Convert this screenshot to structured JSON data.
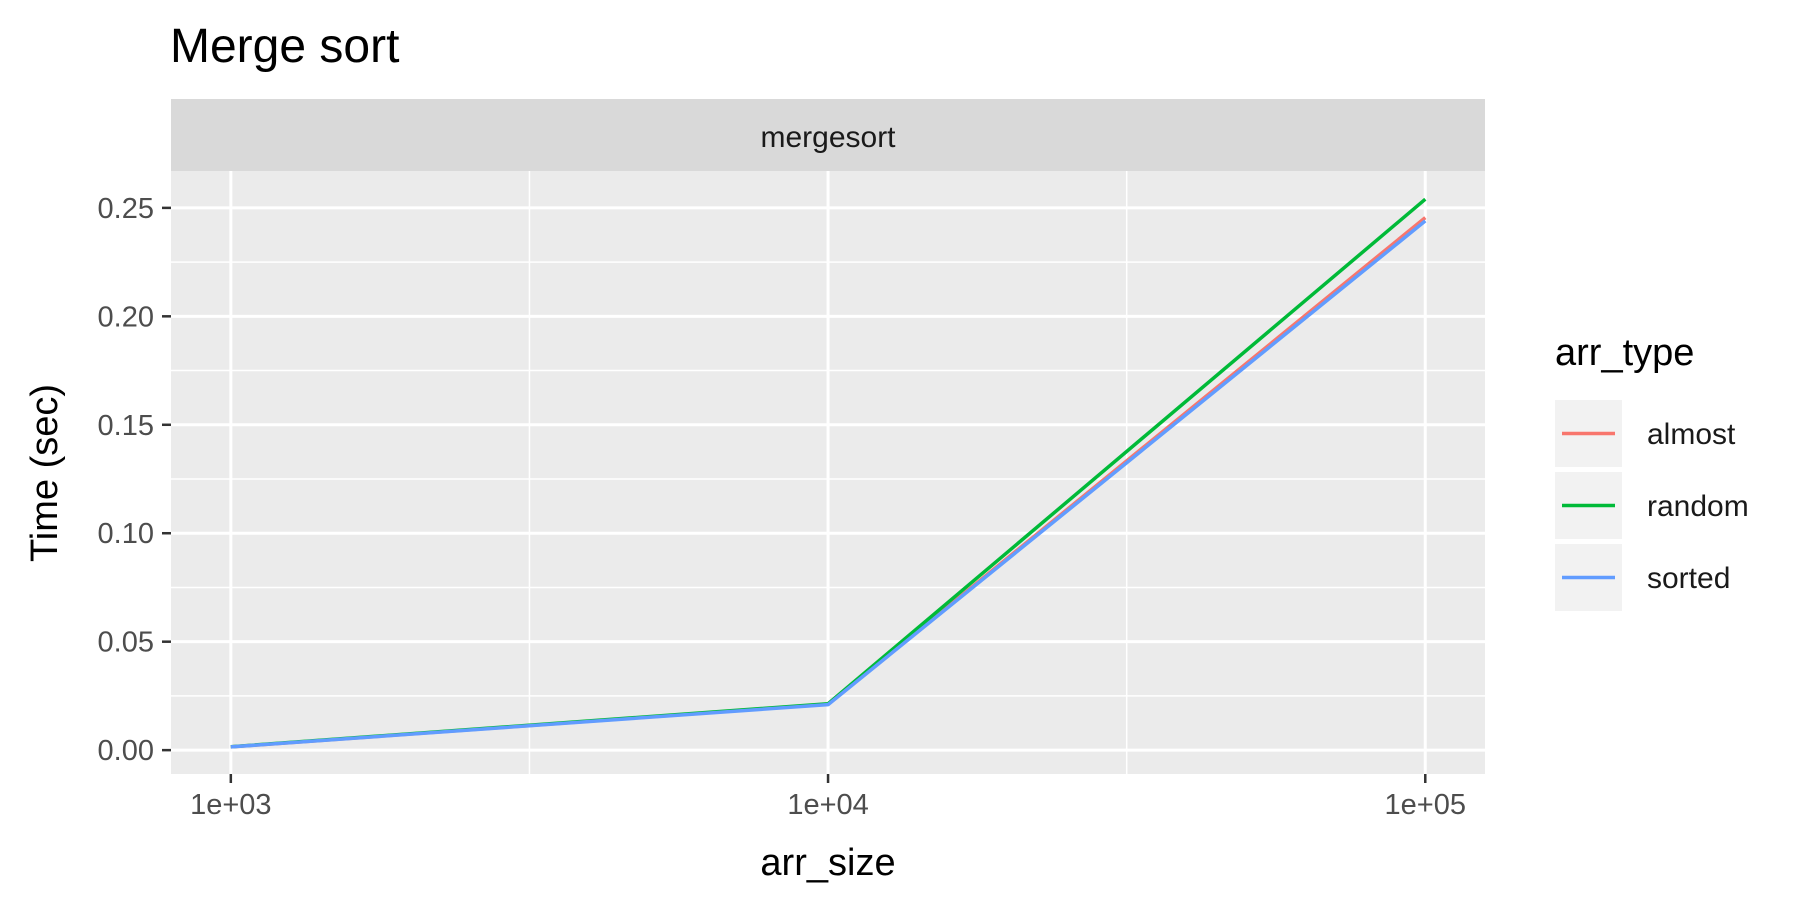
{
  "chart_data": {
    "type": "line",
    "title": "Merge sort",
    "facet": "mergesort",
    "xlabel": "arr_size",
    "ylabel": "Time (sec)",
    "x_scale": "log10",
    "x": [
      1000,
      10000,
      100000
    ],
    "x_ticks": [
      {
        "value": 1000,
        "label": "1e+03"
      },
      {
        "value": 10000,
        "label": "1e+04"
      },
      {
        "value": 100000,
        "label": "1e+05"
      }
    ],
    "x_minor_breaks": [
      3162.28,
      31622.78
    ],
    "xlim": [
      794,
      125893
    ],
    "y_ticks": [
      {
        "value": 0.0,
        "label": "0.00"
      },
      {
        "value": 0.05,
        "label": "0.05"
      },
      {
        "value": 0.1,
        "label": "0.10"
      },
      {
        "value": 0.15,
        "label": "0.15"
      },
      {
        "value": 0.2,
        "label": "0.20"
      },
      {
        "value": 0.25,
        "label": "0.25"
      }
    ],
    "y_minor_breaks": [
      0.025,
      0.075,
      0.125,
      0.175,
      0.225
    ],
    "ylim": [
      -0.011,
      0.267
    ],
    "grid": true,
    "legend": {
      "title": "arr_type",
      "position": "right"
    },
    "series": [
      {
        "name": "almost",
        "color": "#F8766D",
        "values": [
          0.0015,
          0.0212,
          0.2455
        ]
      },
      {
        "name": "random",
        "color": "#00BA38",
        "values": [
          0.0016,
          0.0214,
          0.254
        ]
      },
      {
        "name": "sorted",
        "color": "#619CFF",
        "values": [
          0.0015,
          0.021,
          0.244
        ]
      }
    ]
  }
}
